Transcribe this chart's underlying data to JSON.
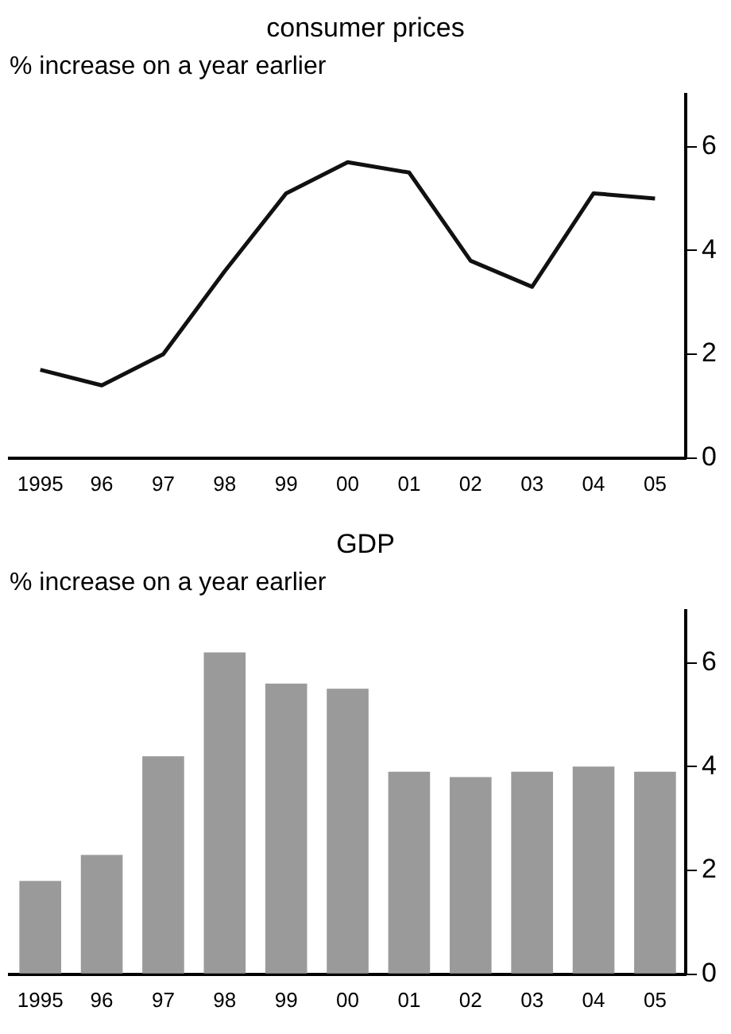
{
  "chart_data": [
    {
      "type": "line",
      "title": "consumer prices",
      "ylabel": "% increase on a year earlier",
      "categories": [
        "1995",
        "96",
        "97",
        "98",
        "99",
        "00",
        "01",
        "02",
        "03",
        "04",
        "05"
      ],
      "series": [
        {
          "color": "#111111",
          "values": [
            1.7,
            1.4,
            2.0,
            3.6,
            5.1,
            5.7,
            5.5,
            3.8,
            3.3,
            5.1,
            5.0
          ]
        }
      ],
      "ylim": [
        0,
        7
      ],
      "yticks": [
        0,
        2,
        4,
        6
      ],
      "grid": false,
      "legend": false,
      "marker": "none",
      "line_style": "solid"
    },
    {
      "type": "bar",
      "title": "GDP",
      "ylabel": "% increase on a year earlier",
      "categories": [
        "1995",
        "96",
        "97",
        "98",
        "99",
        "00",
        "01",
        "02",
        "03",
        "04",
        "05"
      ],
      "series": [
        {
          "color": "#9a9a9a",
          "values": [
            1.8,
            2.3,
            4.2,
            6.2,
            5.6,
            5.5,
            3.9,
            3.8,
            3.9,
            4.0,
            3.9
          ]
        }
      ],
      "ylim": [
        0,
        7
      ],
      "yticks": [
        0,
        2,
        4,
        6
      ],
      "grid": false,
      "legend": false
    }
  ]
}
